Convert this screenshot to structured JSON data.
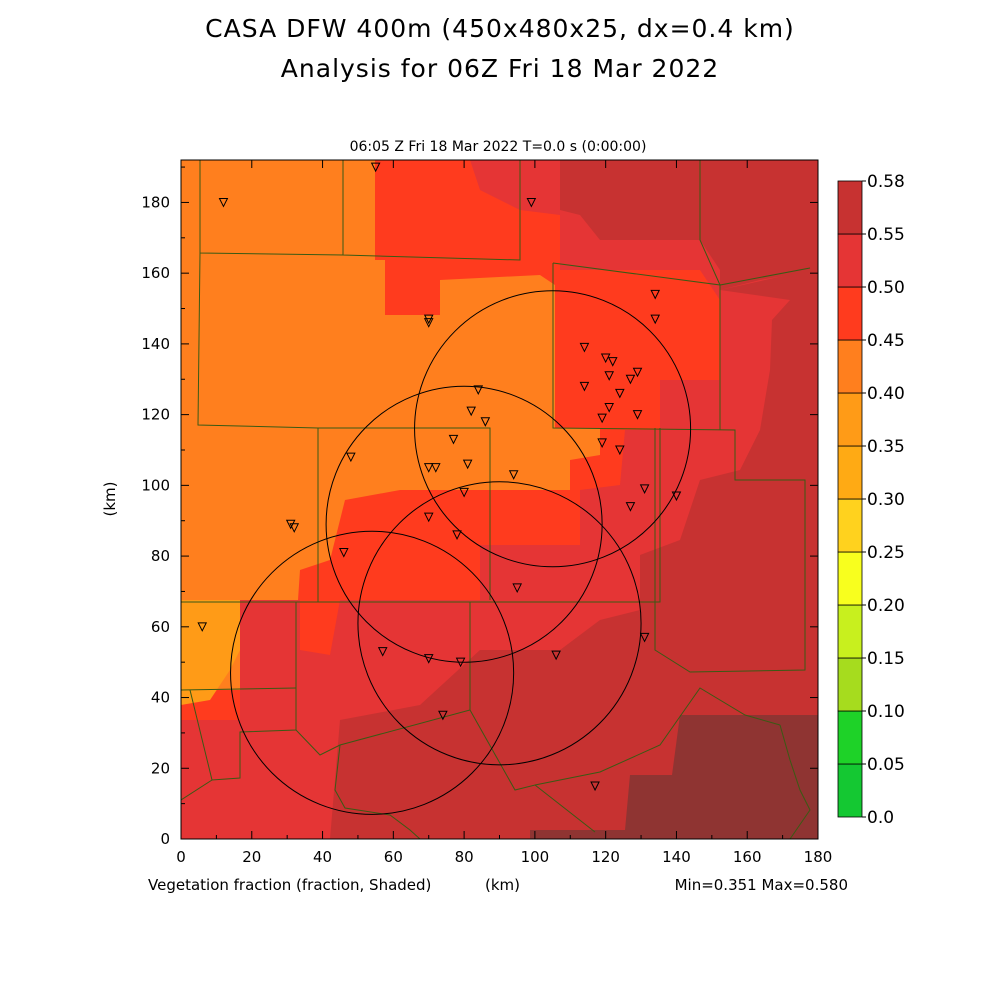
{
  "title_line1": "CASA DFW 400m (450x480x25, dx=0.4 km)",
  "title_line2": "Analysis for 06Z Fri 18 Mar 2022",
  "subtitle": "06:05 Z Fri 18 Mar 2022    T=0.0 s (0:00:00)",
  "field_label": "Vegetation fraction (fraction, Shaded)",
  "x_unit_label": "(km)",
  "y_unit_label": "(km)",
  "stats": "Min=0.351 Max=0.580",
  "colors": {
    "band_030_035": "#ff9b17",
    "band_035_040": "#ff7f1e",
    "band_040_045": "#ff3b1e",
    "band_045_050": "#e53535",
    "band_050_055": "#c73231",
    "band_055_058": "#8f3432",
    "county_lines": "#3a5a14",
    "circle_lines": "#000000"
  },
  "chart_data": {
    "type": "map",
    "xlim": [
      0,
      180
    ],
    "ylim": [
      0,
      192
    ],
    "x_ticks": [
      "0",
      "20",
      "40",
      "60",
      "80",
      "100",
      "120",
      "140",
      "160",
      "180"
    ],
    "y_ticks": [
      "0",
      "20",
      "40",
      "60",
      "80",
      "100",
      "120",
      "140",
      "160",
      "180"
    ],
    "colorbar": {
      "labels": [
        "0.0",
        "0.05",
        "0.10",
        "0.15",
        "0.20",
        "0.25",
        "0.30",
        "0.35",
        "0.40",
        "0.45",
        "0.50",
        "0.55",
        "0.58"
      ],
      "colors": [
        "#18e88c",
        "#14c832",
        "#1ed228",
        "#a6dc1e",
        "#c8f01e",
        "#f8ff1e",
        "#ffd21e",
        "#ffaa14",
        "#ff9b17",
        "#ff7f1e",
        "#ff3b1e",
        "#e53535",
        "#c73231",
        "#8f3432"
      ]
    },
    "radar_circles": [
      {
        "cx": 105,
        "cy": 116,
        "r": 39
      },
      {
        "cx": 80,
        "cy": 89,
        "r": 39
      },
      {
        "cx": 90,
        "cy": 61,
        "r": 40
      },
      {
        "cx": 54,
        "cy": 47,
        "r": 40
      }
    ],
    "stations": [
      [
        55,
        190
      ],
      [
        12,
        180
      ],
      [
        99,
        180
      ],
      [
        134,
        154
      ],
      [
        70,
        147
      ],
      [
        70,
        146
      ],
      [
        134,
        147
      ],
      [
        114,
        139
      ],
      [
        120,
        136
      ],
      [
        122,
        135
      ],
      [
        114,
        128
      ],
      [
        121,
        131
      ],
      [
        84,
        127
      ],
      [
        127,
        130
      ],
      [
        129,
        132
      ],
      [
        124,
        126
      ],
      [
        82,
        121
      ],
      [
        121,
        122
      ],
      [
        119,
        119
      ],
      [
        129,
        120
      ],
      [
        86,
        118
      ],
      [
        77,
        113
      ],
      [
        119,
        112
      ],
      [
        124,
        110
      ],
      [
        48,
        108
      ],
      [
        70,
        105
      ],
      [
        72,
        105
      ],
      [
        81,
        106
      ],
      [
        94,
        103
      ],
      [
        131,
        99
      ],
      [
        80,
        98
      ],
      [
        140,
        97
      ],
      [
        127,
        94
      ],
      [
        70,
        91
      ],
      [
        31,
        89
      ],
      [
        32,
        88
      ],
      [
        78,
        86
      ],
      [
        46,
        81
      ],
      [
        95,
        71
      ],
      [
        6,
        60
      ],
      [
        131,
        57
      ],
      [
        57,
        53
      ],
      [
        106,
        52
      ],
      [
        70,
        51
      ],
      [
        79,
        50
      ],
      [
        74,
        35
      ],
      [
        117,
        15
      ]
    ]
  }
}
